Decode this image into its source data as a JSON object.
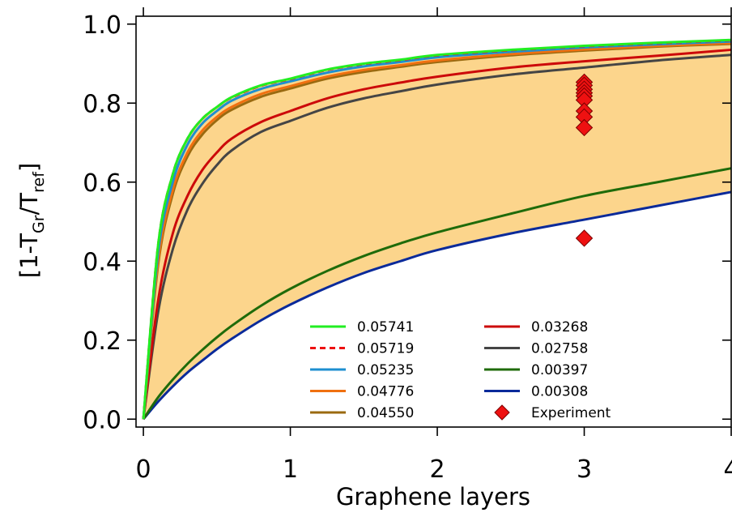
{
  "chart_data": {
    "type": "line",
    "title": "",
    "xlabel": "Graphene layers",
    "ylabel": {
      "prefix": "[1-T",
      "sub1": "Gr",
      "mid": "/T",
      "sub2": "ref",
      "suffix": "]"
    },
    "xlim": [
      -0.05,
      4.0
    ],
    "ylim": [
      -0.02,
      1.02
    ],
    "x_ticks": [
      0,
      1,
      2,
      3,
      4
    ],
    "x_tick_labels": [
      "0",
      "1",
      "2",
      "3",
      "4"
    ],
    "y_ticks": [
      0.0,
      0.2,
      0.4,
      0.6,
      0.8,
      1.0
    ],
    "y_tick_labels": [
      "0.0",
      "0.2",
      "0.4",
      "0.6",
      "0.8",
      "1.0"
    ],
    "grid": false,
    "legend_position": "bottom-right",
    "shaded_band": {
      "color": "#fcd58c",
      "between": [
        "0.05719",
        "0.00308"
      ]
    },
    "x": [
      0,
      0.1,
      0.2,
      0.3,
      0.4,
      0.5,
      0.6,
      0.8,
      1.0,
      1.25,
      1.5,
      1.75,
      2.0,
      2.5,
      3.0,
      3.5,
      4.0
    ],
    "series": [
      {
        "name": "0.05741",
        "color": "#22ee22",
        "dash": "",
        "values": [
          0,
          0.44,
          0.62,
          0.71,
          0.76,
          0.79,
          0.815,
          0.845,
          0.862,
          0.885,
          0.9,
          0.91,
          0.922,
          0.935,
          0.945,
          0.953,
          0.96
        ]
      },
      {
        "name": "0.05719",
        "color": "#ee1111",
        "dash": "7,5",
        "values": [
          0,
          0.44,
          0.62,
          0.71,
          0.76,
          0.79,
          0.814,
          0.844,
          0.861,
          0.884,
          0.899,
          0.909,
          0.921,
          0.934,
          0.944,
          0.952,
          0.959
        ]
      },
      {
        "name": "0.05235",
        "color": "#1e8fd0",
        "dash": "",
        "values": [
          0,
          0.42,
          0.6,
          0.695,
          0.748,
          0.78,
          0.806,
          0.836,
          0.855,
          0.877,
          0.893,
          0.904,
          0.916,
          0.93,
          0.941,
          0.949,
          0.956
        ]
      },
      {
        "name": "0.04776",
        "color": "#f07010",
        "dash": "",
        "values": [
          0,
          0.4,
          0.58,
          0.675,
          0.73,
          0.765,
          0.79,
          0.823,
          0.843,
          0.867,
          0.884,
          0.896,
          0.908,
          0.924,
          0.936,
          0.945,
          0.952
        ]
      },
      {
        "name": "0.04550",
        "color": "#9a6a10",
        "dash": "",
        "values": [
          0,
          0.39,
          0.57,
          0.665,
          0.72,
          0.757,
          0.783,
          0.816,
          0.837,
          0.862,
          0.879,
          0.892,
          0.904,
          0.921,
          0.933,
          0.943,
          0.95
        ]
      },
      {
        "name": "0.03268",
        "color": "#cc0a0a",
        "dash": "",
        "values": [
          0,
          0.3,
          0.47,
          0.565,
          0.63,
          0.675,
          0.71,
          0.752,
          0.78,
          0.812,
          0.835,
          0.852,
          0.867,
          0.89,
          0.906,
          0.92,
          0.935
        ]
      },
      {
        "name": "0.02758",
        "color": "#454545",
        "dash": "",
        "values": [
          0,
          0.27,
          0.43,
          0.53,
          0.595,
          0.643,
          0.68,
          0.727,
          0.755,
          0.788,
          0.812,
          0.83,
          0.847,
          0.872,
          0.89,
          0.908,
          0.922
        ]
      },
      {
        "name": "0.00397",
        "color": "#1f6b0a",
        "dash": "",
        "values": [
          0,
          0.055,
          0.1,
          0.14,
          0.175,
          0.207,
          0.236,
          0.287,
          0.33,
          0.375,
          0.413,
          0.445,
          0.473,
          0.52,
          0.565,
          0.6,
          0.635
        ]
      },
      {
        "name": "0.00308",
        "color": "#0a2a9a",
        "dash": "",
        "values": [
          0,
          0.044,
          0.083,
          0.118,
          0.148,
          0.177,
          0.203,
          0.25,
          0.29,
          0.333,
          0.37,
          0.4,
          0.428,
          0.47,
          0.505,
          0.54,
          0.575
        ]
      }
    ],
    "experiment": {
      "name": "Experiment",
      "color": "#ee1111",
      "points": [
        {
          "x": 3,
          "y": 0.853
        },
        {
          "x": 3,
          "y": 0.845
        },
        {
          "x": 3,
          "y": 0.835
        },
        {
          "x": 3,
          "y": 0.826
        },
        {
          "x": 3,
          "y": 0.818
        },
        {
          "x": 3,
          "y": 0.808
        },
        {
          "x": 3,
          "y": 0.78
        },
        {
          "x": 3,
          "y": 0.765
        },
        {
          "x": 3,
          "y": 0.738
        },
        {
          "x": 3,
          "y": 0.458
        }
      ]
    }
  }
}
